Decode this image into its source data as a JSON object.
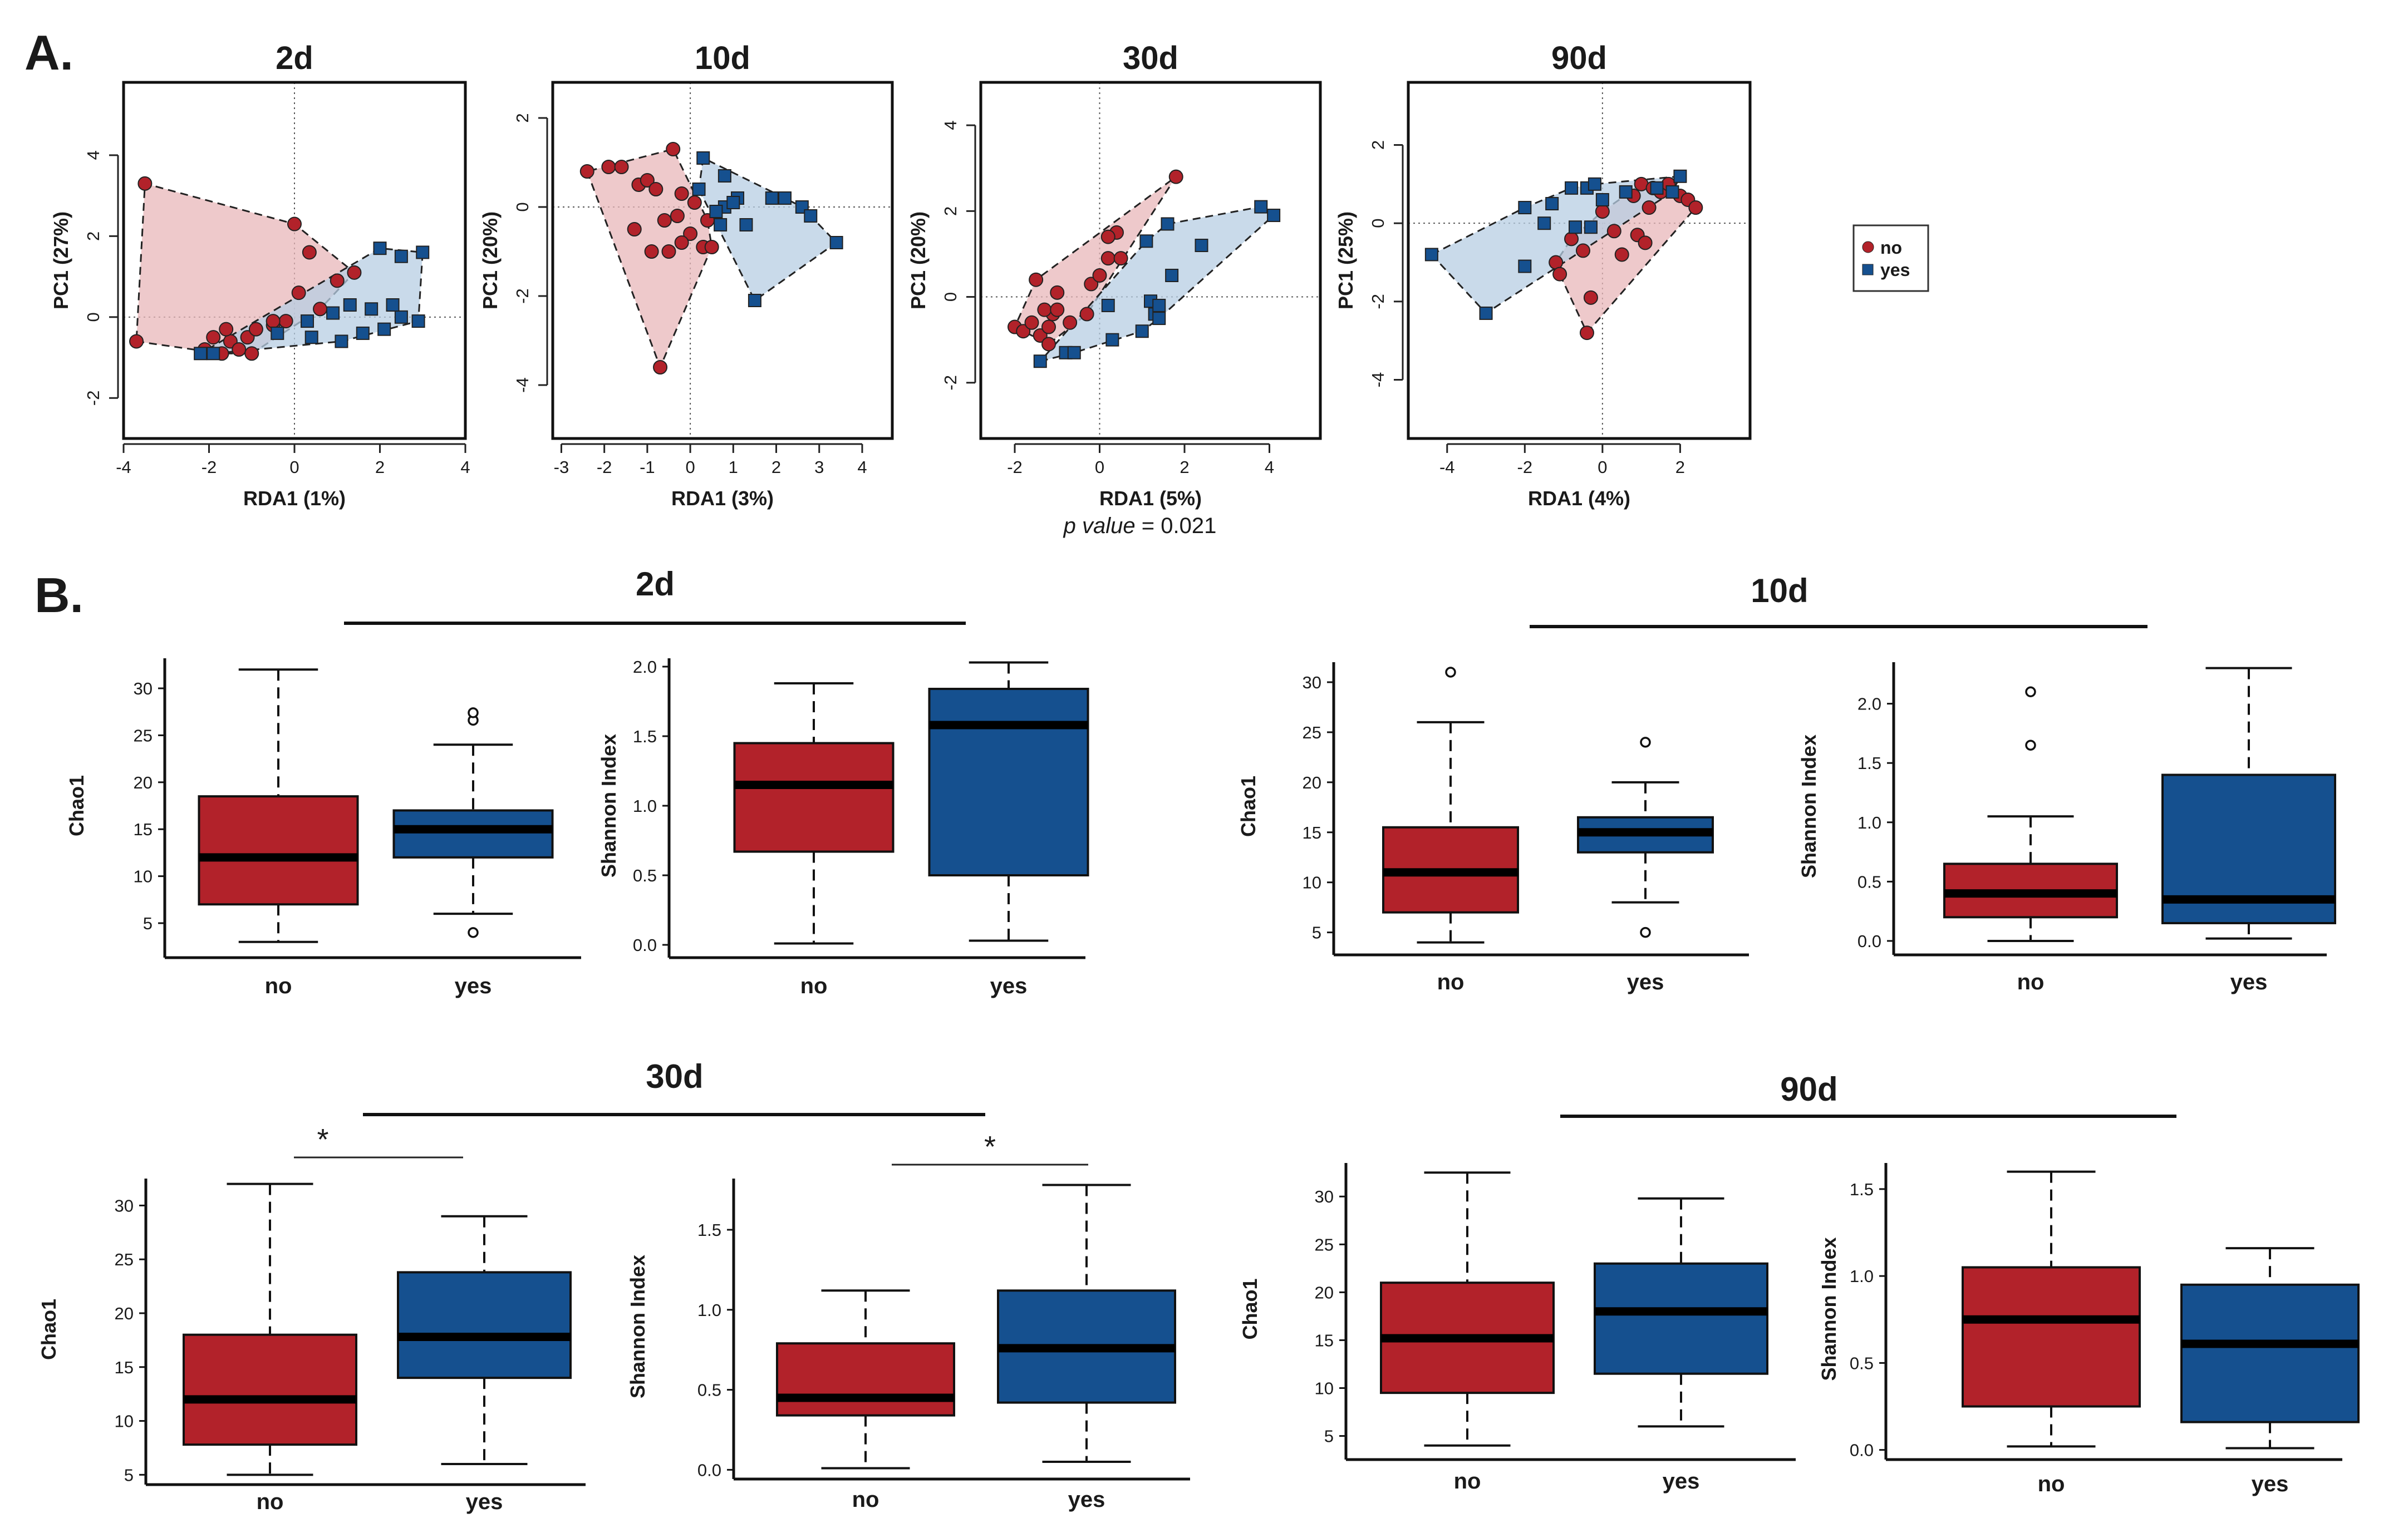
{
  "figure": {
    "label_a": "A.",
    "label_b": "B.",
    "pvalue_label": "p value",
    "pvalue_text": " = 0.021",
    "colors": {
      "no": "#b2222a",
      "yes": "#15508f",
      "no_fill": "#e8b7b9",
      "yes_fill": "#b7cde3"
    }
  },
  "legend": {
    "entries": [
      {
        "key": "no",
        "label": "no"
      },
      {
        "key": "yes",
        "label": "yes"
      }
    ]
  },
  "chart_data": [
    {
      "type": "scatter",
      "title": "2d",
      "xlabel": "RDA1 (1%)",
      "ylabel": "PC1 (27%)",
      "xlim": [
        -4,
        4
      ],
      "ylim": [
        -3,
        5.8
      ],
      "xticks": [
        -4,
        -2,
        0,
        2,
        4
      ],
      "yticks": [
        -2,
        0,
        2,
        4
      ],
      "series": [
        {
          "name": "no",
          "points": [
            [
              -3.5,
              3.3
            ],
            [
              -3.7,
              -0.6
            ],
            [
              0,
              2.3
            ],
            [
              0.35,
              1.6
            ],
            [
              -2.1,
              -0.8
            ],
            [
              -1.9,
              -0.5
            ],
            [
              -1.7,
              -0.9
            ],
            [
              -1.5,
              -0.6
            ],
            [
              -1.3,
              -0.8
            ],
            [
              -1.1,
              -0.5
            ],
            [
              -0.9,
              -0.3
            ],
            [
              -0.5,
              -0.2
            ],
            [
              -0.2,
              -0.1
            ],
            [
              0.1,
              0.6
            ],
            [
              0.6,
              0.2
            ],
            [
              1.0,
              0.9
            ],
            [
              1.4,
              1.1
            ],
            [
              -1.0,
              -0.9
            ],
            [
              -1.6,
              -0.3
            ],
            [
              -0.5,
              -0.1
            ]
          ]
        },
        {
          "name": "yes",
          "points": [
            [
              -2.2,
              -0.9
            ],
            [
              -1.9,
              -0.9
            ],
            [
              -0.4,
              -0.4
            ],
            [
              0.4,
              -0.5
            ],
            [
              1.1,
              -0.6
            ],
            [
              1.6,
              -0.4
            ],
            [
              2.1,
              -0.3
            ],
            [
              2.5,
              0
            ],
            [
              2.9,
              -0.1
            ],
            [
              3.0,
              1.6
            ],
            [
              2.0,
              1.7
            ],
            [
              2.5,
              1.5
            ],
            [
              1.3,
              0.3
            ],
            [
              0.9,
              0.1
            ],
            [
              0.3,
              -0.1
            ],
            [
              1.8,
              0.2
            ],
            [
              2.3,
              0.3
            ]
          ]
        }
      ]
    },
    {
      "type": "scatter",
      "title": "10d",
      "xlabel": "RDA1 (3%)",
      "ylabel": "PC1 (20%)",
      "xlim": [
        -3.2,
        4.7
      ],
      "ylim": [
        -5.2,
        2.8
      ],
      "xticks": [
        -3,
        -2,
        -1,
        0,
        1,
        2,
        3,
        4
      ],
      "yticks": [
        -4,
        -2,
        0,
        2
      ],
      "series": [
        {
          "name": "no",
          "points": [
            [
              -2.4,
              0.8
            ],
            [
              -1.9,
              0.9
            ],
            [
              -1.6,
              0.9
            ],
            [
              -1.2,
              0.5
            ],
            [
              -1.0,
              0.6
            ],
            [
              -0.8,
              0.4
            ],
            [
              -0.6,
              -0.3
            ],
            [
              -0.9,
              -1.0
            ],
            [
              -0.7,
              -3.6
            ],
            [
              -0.4,
              1.3
            ],
            [
              -0.2,
              0.3
            ],
            [
              0.1,
              0.1
            ],
            [
              -0.3,
              -0.2
            ],
            [
              0,
              -0.6
            ],
            [
              0.3,
              -0.9
            ],
            [
              0.5,
              -0.9
            ],
            [
              0.4,
              -0.3
            ],
            [
              -1.3,
              -0.5
            ],
            [
              -0.5,
              -1.0
            ],
            [
              -0.2,
              -0.8
            ]
          ]
        },
        {
          "name": "yes",
          "points": [
            [
              0.3,
              1.1
            ],
            [
              0.8,
              0.7
            ],
            [
              1.1,
              0.2
            ],
            [
              0.8,
              0
            ],
            [
              0.6,
              -0.1
            ],
            [
              0.7,
              -0.4
            ],
            [
              0.2,
              0.4
            ],
            [
              1.3,
              -0.4
            ],
            [
              1.5,
              -2.1
            ],
            [
              1.9,
              0.2
            ],
            [
              2.2,
              0.2
            ],
            [
              2.6,
              0
            ],
            [
              2.8,
              -0.2
            ],
            [
              3.4,
              -0.8
            ],
            [
              1.0,
              0.1
            ]
          ]
        }
      ]
    },
    {
      "type": "scatter",
      "title": "30d",
      "xlabel": "RDA1 (5%)",
      "ylabel": "PC1 (20%)",
      "xlim": [
        -2.8,
        5.2
      ],
      "ylim": [
        -3.3,
        5
      ],
      "xticks": [
        -2,
        0,
        2,
        4
      ],
      "yticks": [
        -2,
        0,
        2,
        4
      ],
      "series": [
        {
          "name": "no",
          "points": [
            [
              -2.0,
              -0.7
            ],
            [
              -1.8,
              -0.8
            ],
            [
              -1.6,
              -0.6
            ],
            [
              -1.4,
              -0.9
            ],
            [
              -1.2,
              -0.7
            ],
            [
              -1.1,
              -0.4
            ],
            [
              -1.3,
              -0.3
            ],
            [
              -1.5,
              0.4
            ],
            [
              -1.0,
              0.1
            ],
            [
              -1.2,
              -1.1
            ],
            [
              -0.7,
              -0.6
            ],
            [
              -0.3,
              -0.4
            ],
            [
              -0.2,
              0.3
            ],
            [
              0,
              0.5
            ],
            [
              0.2,
              0.9
            ],
            [
              0.4,
              1.5
            ],
            [
              0.2,
              1.4
            ],
            [
              0.5,
              0.9
            ],
            [
              1.8,
              2.8
            ],
            [
              -1.0,
              -0.3
            ]
          ]
        },
        {
          "name": "yes",
          "points": [
            [
              -1.4,
              -1.5
            ],
            [
              -0.8,
              -1.3
            ],
            [
              -0.6,
              -1.3
            ],
            [
              0.2,
              -0.2
            ],
            [
              1.0,
              -0.8
            ],
            [
              1.2,
              -0.1
            ],
            [
              1.3,
              -0.4
            ],
            [
              1.4,
              -0.2
            ],
            [
              1.4,
              -0.5
            ],
            [
              1.7,
              0.5
            ],
            [
              1.1,
              1.3
            ],
            [
              1.6,
              1.7
            ],
            [
              2.4,
              1.2
            ],
            [
              3.8,
              2.1
            ],
            [
              4.1,
              1.9
            ],
            [
              0.3,
              -1.0
            ]
          ]
        }
      ]
    },
    {
      "type": "scatter",
      "title": "90d",
      "xlabel": "RDA1 (4%)",
      "ylabel": "PC1 (25%)",
      "xlim": [
        -5,
        3.8
      ],
      "ylim": [
        -5.5,
        3.6
      ],
      "xticks": [
        -4,
        -2,
        0,
        2
      ],
      "yticks": [
        -4,
        -2,
        0,
        2
      ],
      "series": [
        {
          "name": "no",
          "points": [
            [
              -1.2,
              -1.0
            ],
            [
              -1.1,
              -1.3
            ],
            [
              -0.8,
              -0.4
            ],
            [
              -0.5,
              -0.7
            ],
            [
              -0.4,
              -2.8
            ],
            [
              -0.3,
              -1.9
            ],
            [
              0,
              0.3
            ],
            [
              0.3,
              -0.2
            ],
            [
              0.5,
              -0.8
            ],
            [
              0.9,
              -0.3
            ],
            [
              1.1,
              -0.5
            ],
            [
              0.8,
              0.7
            ],
            [
              1.0,
              1.0
            ],
            [
              1.3,
              0.9
            ],
            [
              1.5,
              0.8
            ],
            [
              1.7,
              1.0
            ],
            [
              2.0,
              0.7
            ],
            [
              2.2,
              0.6
            ],
            [
              2.4,
              0.4
            ],
            [
              1.2,
              0.4
            ]
          ]
        },
        {
          "name": "yes",
          "points": [
            [
              -4.4,
              -0.8
            ],
            [
              -3.0,
              -2.3
            ],
            [
              -2.0,
              0.4
            ],
            [
              -2.0,
              -1.1
            ],
            [
              -1.5,
              0
            ],
            [
              -1.3,
              0.5
            ],
            [
              -0.8,
              0.9
            ],
            [
              -0.7,
              -0.1
            ],
            [
              -0.4,
              0.9
            ],
            [
              -0.2,
              1.0
            ],
            [
              -0.3,
              -0.1
            ],
            [
              0.6,
              0.8
            ],
            [
              1.4,
              0.9
            ],
            [
              2.0,
              1.2
            ],
            [
              1.8,
              0.8
            ],
            [
              0,
              0.6
            ]
          ]
        }
      ]
    },
    {
      "type": "box",
      "group": "2d",
      "title": "2d",
      "ylabel": "Chao1",
      "categories": [
        "no",
        "yes"
      ],
      "ylim": [
        1.8,
        33.2
      ],
      "yticks": [
        5,
        10,
        15,
        20,
        25,
        30
      ],
      "boxes": [
        {
          "category": "no",
          "whisker_low": 3,
          "q1": 7,
          "median": 12,
          "q3": 18.5,
          "whisker_high": 32,
          "outliers": []
        },
        {
          "category": "yes",
          "whisker_low": 6,
          "q1": 12,
          "median": 15,
          "q3": 17,
          "whisker_high": 24,
          "outliers": [
            4,
            26.6,
            27.4
          ]
        }
      ],
      "significance": ""
    },
    {
      "type": "box",
      "group": "2d",
      "title": "2d",
      "ylabel": "Shannon Index",
      "categories": [
        "no",
        "yes"
      ],
      "ylim": [
        -0.06,
        2.06
      ],
      "yticks": [
        0.0,
        0.5,
        1.0,
        1.5,
        2.0
      ],
      "boxes": [
        {
          "category": "no",
          "whisker_low": 0.01,
          "q1": 0.67,
          "median": 1.15,
          "q3": 1.45,
          "whisker_high": 1.88,
          "outliers": []
        },
        {
          "category": "yes",
          "whisker_low": 0.03,
          "q1": 0.5,
          "median": 1.58,
          "q3": 1.84,
          "whisker_high": 2.03,
          "outliers": []
        }
      ],
      "significance": ""
    },
    {
      "type": "box",
      "group": "10d",
      "title": "10d",
      "ylabel": "Chao1",
      "categories": [
        "no",
        "yes"
      ],
      "ylim": [
        3.2,
        32
      ],
      "yticks": [
        5,
        10,
        15,
        20,
        25,
        30
      ],
      "boxes": [
        {
          "category": "no",
          "whisker_low": 4,
          "q1": 7,
          "median": 11,
          "q3": 15.5,
          "whisker_high": 26,
          "outliers": [
            31
          ]
        },
        {
          "category": "yes",
          "whisker_low": 8,
          "q1": 13,
          "median": 15,
          "q3": 16.5,
          "whisker_high": 20,
          "outliers": [
            5,
            24
          ]
        }
      ],
      "significance": ""
    },
    {
      "type": "box",
      "group": "10d",
      "title": "10d",
      "ylabel": "Shannon Index",
      "categories": [
        "no",
        "yes"
      ],
      "ylim": [
        -0.08,
        2.35
      ],
      "yticks": [
        0.0,
        0.5,
        1.0,
        1.5,
        2.0
      ],
      "boxes": [
        {
          "category": "no",
          "whisker_low": 0,
          "q1": 0.2,
          "median": 0.4,
          "q3": 0.65,
          "whisker_high": 1.05,
          "outliers": [
            1.65,
            2.1
          ]
        },
        {
          "category": "yes",
          "whisker_low": 0.02,
          "q1": 0.15,
          "median": 0.35,
          "q3": 1.4,
          "whisker_high": 2.3,
          "outliers": []
        }
      ],
      "significance": ""
    },
    {
      "type": "box",
      "group": "30d",
      "title": "30d",
      "ylabel": "Chao1",
      "categories": [
        "no",
        "yes"
      ],
      "ylim": [
        4.5,
        32.5
      ],
      "yticks": [
        5,
        10,
        15,
        20,
        25,
        30
      ],
      "boxes": [
        {
          "category": "no",
          "whisker_low": 5,
          "q1": 7.8,
          "median": 12,
          "q3": 18,
          "whisker_high": 32,
          "outliers": []
        },
        {
          "category": "yes",
          "whisker_low": 6,
          "q1": 14,
          "median": 17.8,
          "q3": 23.8,
          "whisker_high": 29,
          "outliers": []
        }
      ],
      "significance": "*"
    },
    {
      "type": "box",
      "group": "30d",
      "title": "30d",
      "ylabel": "Shannon Index",
      "categories": [
        "no",
        "yes"
      ],
      "ylim": [
        -0.03,
        1.82
      ],
      "yticks": [
        0.0,
        0.5,
        1.0,
        1.5
      ],
      "boxes": [
        {
          "category": "no",
          "whisker_low": 0.01,
          "q1": 0.34,
          "median": 0.45,
          "q3": 0.79,
          "whisker_high": 1.12,
          "outliers": []
        },
        {
          "category": "yes",
          "whisker_low": 0.05,
          "q1": 0.42,
          "median": 0.76,
          "q3": 1.12,
          "whisker_high": 1.78,
          "outliers": []
        }
      ],
      "significance": "*"
    },
    {
      "type": "box",
      "group": "90d",
      "title": "90d",
      "ylabel": "Chao1",
      "categories": [
        "no",
        "yes"
      ],
      "ylim": [
        3,
        33.5
      ],
      "yticks": [
        5,
        10,
        15,
        20,
        25,
        30
      ],
      "boxes": [
        {
          "category": "no",
          "whisker_low": 4,
          "q1": 9.5,
          "median": 15.2,
          "q3": 21,
          "whisker_high": 32.5,
          "outliers": []
        },
        {
          "category": "yes",
          "whisker_low": 6,
          "q1": 11.5,
          "median": 18,
          "q3": 23,
          "whisker_high": 29.8,
          "outliers": []
        }
      ],
      "significance": ""
    },
    {
      "type": "box",
      "group": "90d",
      "title": "90d",
      "ylabel": "Shannon Index",
      "categories": [
        "no",
        "yes"
      ],
      "ylim": [
        -0.03,
        1.65
      ],
      "yticks": [
        0.0,
        0.5,
        1.0,
        1.5
      ],
      "boxes": [
        {
          "category": "no",
          "whisker_low": 0.02,
          "q1": 0.25,
          "median": 0.75,
          "q3": 1.05,
          "whisker_high": 1.6,
          "outliers": []
        },
        {
          "category": "yes",
          "whisker_low": 0.01,
          "q1": 0.16,
          "median": 0.61,
          "q3": 0.95,
          "whisker_high": 1.16,
          "outliers": []
        }
      ],
      "significance": ""
    }
  ]
}
